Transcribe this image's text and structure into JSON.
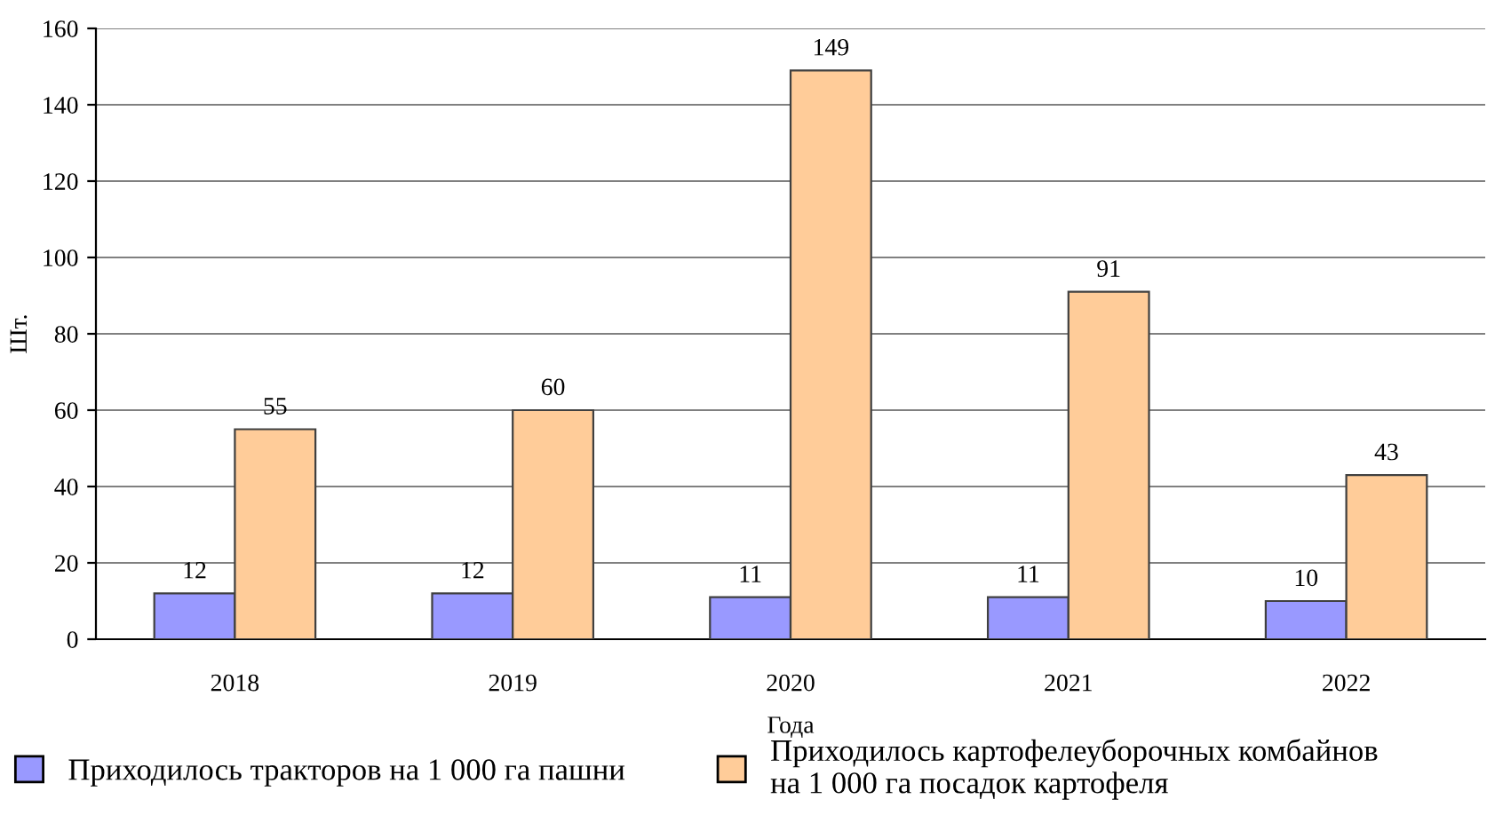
{
  "chart_data": {
    "type": "bar",
    "xlabel": "Года",
    "ylabel": "Шт.",
    "categories": [
      "2018",
      "2019",
      "2020",
      "2021",
      "2022"
    ],
    "series": [
      {
        "name": "Приходилось тракторов на 1 000 га пашни",
        "color": "#9999ff",
        "values": [
          12,
          12,
          11,
          11,
          10
        ]
      },
      {
        "name": "Приходилось картофелеуборочных комбайнов\nна 1 000 га посадок картофеля",
        "color": "#ffcc99",
        "values": [
          55,
          60,
          149,
          91,
          43
        ]
      }
    ],
    "ylim": [
      0,
      160
    ],
    "yticks": [
      0,
      20,
      40,
      60,
      80,
      100,
      120,
      140,
      160
    ],
    "grid": "y",
    "data_labels": true,
    "legend": "bottom"
  }
}
